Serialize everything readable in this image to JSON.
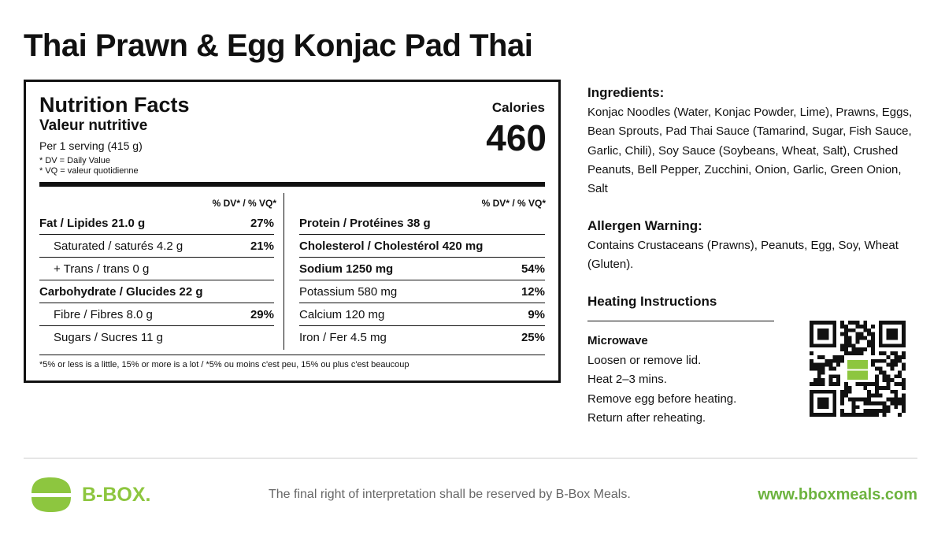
{
  "title": "Thai Prawn & Egg Konjac Pad Thai",
  "nutrition": {
    "heading": "Nutrition Facts",
    "heading_fr": "Valeur nutritive",
    "serving": "Per 1 serving (415 g)",
    "notes": [
      "* DV = Daily Value",
      "* VQ = valeur quotidienne"
    ],
    "calories_label": "Calories",
    "calories": "460",
    "dv_header": "% DV* / % VQ*",
    "left_rows": [
      {
        "label": "Fat / Lipides 21.0 g",
        "dv": "27%"
      },
      {
        "label": "Saturated / saturés 4.2 g",
        "dv": "21%"
      },
      {
        "label": "+ Trans / trans 0 g"
      },
      {
        "label": "Carbohydrate / Glucides 22 g"
      },
      {
        "label": "Fibre / Fibres 8.0 g",
        "dv": "29%"
      },
      {
        "label": "Sugars / Sucres 11 g"
      }
    ],
    "right_rows": [
      {
        "label": "Protein / Protéines 38 g"
      },
      {
        "label": "Cholesterol / Cholestérol 420 mg"
      },
      {
        "label": "Sodium 1250 mg",
        "dv": "54%"
      },
      {
        "label": "Potassium 580 mg",
        "dv": "12%"
      },
      {
        "label": "Calcium 120 mg",
        "dv": "9%"
      },
      {
        "label": "Iron / Fer 4.5 mg",
        "dv": "25%"
      }
    ],
    "footnote": "*5% or less is a little, 15% or more is a lot / *5% ou moins c'est peu, 15% ou plus c'est beaucoup"
  },
  "ingredients": {
    "heading": "Ingredients:",
    "text": "Konjac Noodles (Water, Konjac Powder, Lime), Prawns, Eggs, Bean Sprouts, Pad Thai Sauce (Tamarind, Sugar, Fish Sauce, Garlic, Chili), Soy Sauce (Soybeans, Wheat, Salt), Crushed Peanuts, Bell Pepper, Zucchini, Onion, Garlic, Green Onion, Salt"
  },
  "allergen": {
    "heading": "Allergen Warning:",
    "text": "Contains Crustaceans (Prawns), Peanuts, Egg, Soy, Wheat (Gluten)."
  },
  "heating": {
    "heading": "Heating Instructions",
    "method": "Microwave",
    "steps": [
      "Loosen or remove lid.",
      "Heat 2–3 mins.",
      "Remove egg before heating.",
      "Return after reheating."
    ]
  },
  "footer": {
    "brand": "B-BOX.",
    "disclaimer": "The final right of interpretation shall be reserved by B-Box Meals.",
    "url": "www.bboxmeals.com"
  }
}
